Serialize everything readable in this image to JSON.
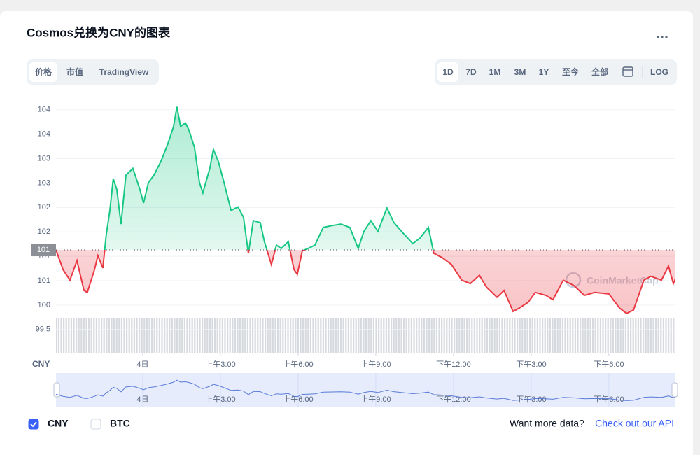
{
  "header": {
    "title": "Cosmos兑换为CNY的图表"
  },
  "tabs": {
    "items": [
      "价格",
      "市值",
      "TradingView"
    ],
    "active": 0
  },
  "ranges": {
    "items": [
      "1D",
      "7D",
      "1M",
      "3M",
      "1Y",
      "至今",
      "全部"
    ],
    "active": 0,
    "log": "LOG"
  },
  "chart_data": {
    "type": "line",
    "y_unit": "CNY",
    "watermark": "CoinMarketCap",
    "up_color": "#16c784",
    "down_color": "#ea3943",
    "grid": true,
    "baseline": {
      "value": 101.13,
      "label": "101"
    },
    "xlim": [
      -3.35,
      20.57
    ],
    "ylim": [
      99.01,
      104.24
    ],
    "xticks": [
      {
        "value": 0,
        "label": "4日"
      },
      {
        "value": 3,
        "label": "上午3:00"
      },
      {
        "value": 6,
        "label": "上午6:00"
      },
      {
        "value": 9,
        "label": "上午9:00"
      },
      {
        "value": 12,
        "label": "下午12:00"
      },
      {
        "value": 15,
        "label": "下午3:00"
      },
      {
        "value": 18,
        "label": "下午6:00"
      }
    ],
    "yticks": [
      {
        "value": 99.5,
        "label": "99.5"
      },
      {
        "value": 100,
        "label": "100"
      },
      {
        "value": 100.5,
        "label": "101"
      },
      {
        "value": 101,
        "label": "101"
      },
      {
        "value": 101.5,
        "label": "102"
      },
      {
        "value": 102,
        "label": "102"
      },
      {
        "value": 102.5,
        "label": "103"
      },
      {
        "value": 103,
        "label": "103"
      },
      {
        "value": 103.5,
        "label": "104"
      },
      {
        "value": 104,
        "label": "104"
      }
    ],
    "x": [
      -3.35,
      -3.08,
      -2.81,
      -2.54,
      -2.27,
      -2.14,
      -1.86,
      -1.73,
      -1.54,
      -1.41,
      -1.27,
      -1.14,
      -1.0,
      -0.84,
      -0.65,
      -0.38,
      -0.11,
      0.03,
      0.22,
      0.43,
      0.7,
      0.97,
      1.19,
      1.32,
      1.46,
      1.65,
      1.78,
      2.0,
      2.19,
      2.32,
      2.59,
      2.73,
      2.92,
      3.14,
      3.41,
      3.68,
      3.89,
      4.08,
      4.27,
      4.54,
      4.7,
      4.97,
      5.16,
      5.35,
      5.62,
      5.84,
      5.97,
      6.16,
      6.38,
      6.65,
      6.97,
      7.32,
      7.65,
      8.0,
      8.32,
      8.54,
      8.81,
      9.08,
      9.43,
      9.7,
      10.03,
      10.43,
      10.7,
      11.03,
      11.24,
      11.57,
      11.92,
      12.32,
      12.65,
      13.0,
      13.27,
      13.68,
      13.95,
      14.3,
      14.54,
      14.89,
      15.16,
      15.57,
      15.84,
      16.24,
      16.65,
      17.05,
      17.46,
      18.0,
      18.41,
      18.68,
      18.95,
      19.35,
      19.62,
      20.03,
      20.3,
      20.49,
      20.57
    ],
    "series": [
      {
        "name": "CNY",
        "values": [
          101.13,
          100.73,
          100.51,
          100.91,
          100.3,
          100.26,
          100.73,
          101.01,
          100.76,
          101.44,
          101.94,
          102.59,
          102.37,
          101.66,
          102.66,
          102.8,
          102.37,
          102.09,
          102.51,
          102.66,
          102.94,
          103.3,
          103.66,
          104.06,
          103.66,
          103.73,
          103.59,
          103.23,
          102.51,
          102.3,
          102.8,
          103.19,
          102.94,
          102.51,
          101.94,
          102.01,
          101.8,
          101.06,
          101.73,
          101.69,
          101.3,
          100.83,
          101.23,
          101.16,
          101.3,
          100.73,
          100.63,
          101.11,
          101.16,
          101.23,
          101.59,
          101.63,
          101.66,
          101.59,
          101.16,
          101.51,
          101.73,
          101.51,
          101.99,
          101.69,
          101.49,
          101.26,
          101.37,
          101.59,
          101.06,
          100.97,
          100.83,
          100.51,
          100.44,
          100.61,
          100.37,
          100.16,
          100.3,
          99.87,
          99.94,
          100.06,
          100.26,
          100.2,
          100.11,
          100.51,
          100.4,
          100.2,
          100.26,
          100.23,
          99.94,
          99.83,
          99.9,
          100.51,
          100.59,
          100.51,
          100.8,
          100.44,
          100.54
        ]
      }
    ]
  },
  "toggles": [
    {
      "label": "CNY",
      "checked": true
    },
    {
      "label": "BTC",
      "checked": false
    }
  ],
  "footer": {
    "prompt": "Want more data?",
    "link": "Check out our API"
  }
}
